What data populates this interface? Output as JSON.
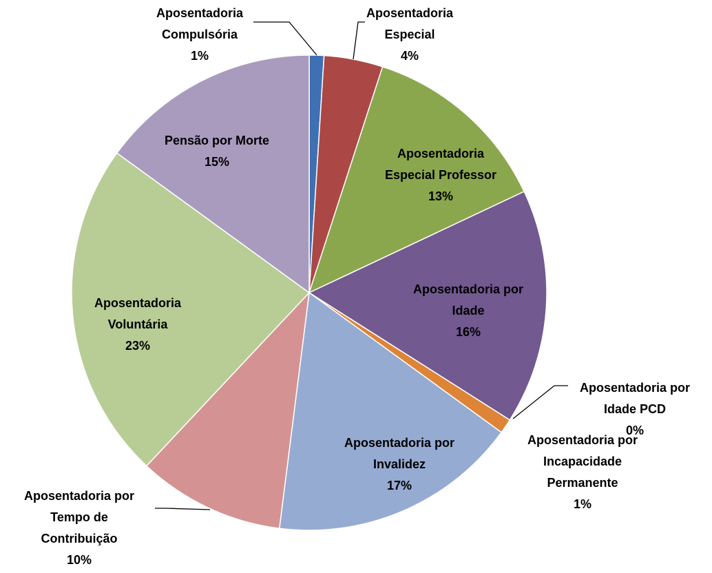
{
  "chart_data": {
    "type": "pie",
    "categories": [
      "Aposentadoria Compulsória",
      "Aposentadoria Especial",
      "Aposentadoria Especial Professor",
      "Aposentadoria por Idade",
      "Aposentadoria por Idade PCD",
      "Aposentadoria por Incapacidade Permanente",
      "Aposentadoria por Invalidez",
      "Aposentadoria por Tempo de Contribuição",
      "Aposentadoria Voluntária",
      "Pensão por Morte"
    ],
    "values": [
      1,
      4,
      13,
      16,
      0,
      1,
      17,
      10,
      23,
      15
    ],
    "value_labels": [
      "1%",
      "4%",
      "13%",
      "16%",
      "0%",
      "1%",
      "17%",
      "10%",
      "23%",
      "15%"
    ],
    "colors": [
      "#3f70b1",
      "#ab4845",
      "#8ba74d",
      "#725990",
      "#4bacc6",
      "#dd8437",
      "#96abd2",
      "#d49392",
      "#b8cd96",
      "#a99bbe"
    ]
  }
}
